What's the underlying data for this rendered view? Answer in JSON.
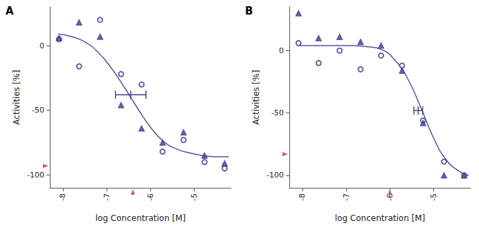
{
  "chart_data": [
    {
      "type": "scatter",
      "panel_label": "A",
      "x_label": "log Concentration [M]",
      "y_label": "Activities [%]",
      "xlim": [
        -8.3,
        -4.15
      ],
      "ylim": [
        -110,
        30
      ],
      "xticks": [
        -8,
        -7,
        -6,
        -5
      ],
      "yticks": [
        -100,
        -50,
        0
      ],
      "series": [
        {
          "type": "scatter",
          "marker": "circle_open",
          "color": "#3b3f8c",
          "x": [
            -8.09,
            -7.63,
            -7.15,
            -6.67,
            -6.2,
            -5.72,
            -5.24,
            -4.76,
            -4.3
          ],
          "values": [
            5,
            -16,
            20,
            -22,
            -30,
            -82,
            -73,
            -90,
            -95
          ]
        },
        {
          "type": "scatter",
          "marker": "triangle",
          "color": "#3b3f8c",
          "x": [
            -8.09,
            -7.63,
            -7.15,
            -6.67,
            -6.2,
            -5.72,
            -5.24,
            -4.76,
            -4.3
          ],
          "values": [
            6,
            18,
            7,
            -46,
            -64,
            -75,
            -67,
            -85,
            -91
          ]
        },
        {
          "type": "line",
          "line_style": "solid",
          "color": "#5055a0",
          "x": [
            -8.1,
            -7.8,
            -7.5,
            -7.2,
            -6.9,
            -6.6,
            -6.3,
            -6.0,
            -5.7,
            -5.4,
            -5.1,
            -4.8,
            -4.5,
            -4.2
          ],
          "values": [
            9,
            7,
            3,
            -5,
            -17,
            -32,
            -48,
            -63,
            -74,
            -80,
            -83,
            -85,
            -86,
            -86
          ]
        }
      ],
      "ic50": {
        "value": -6.45,
        "low": -6.8,
        "high": -6.1,
        "y": -38,
        "color": "#3b3f8c"
      },
      "axis_markers": {
        "x": -6.4,
        "y": -93,
        "color": "#c0392b"
      }
    },
    {
      "type": "scatter",
      "panel_label": "B",
      "x_label": "log Concentration [M]",
      "y_label": "Activities [%]",
      "xlim": [
        -8.3,
        -4.15
      ],
      "ylim": [
        -110,
        35
      ],
      "xticks": [
        -8,
        -7,
        -6,
        -5
      ],
      "yticks": [
        -100,
        -50,
        0
      ],
      "series": [
        {
          "type": "scatter",
          "marker": "circle_open",
          "color": "#3b3f8c",
          "x": [
            -8.09,
            -7.63,
            -7.15,
            -6.67,
            -6.2,
            -5.72,
            -5.24,
            -4.76,
            -4.3
          ],
          "values": [
            6,
            -10,
            0,
            -15,
            -4,
            -12,
            -56,
            -89,
            -100
          ]
        },
        {
          "type": "scatter",
          "marker": "triangle",
          "color": "#3b3f8c",
          "x": [
            -8.09,
            -7.63,
            -7.15,
            -6.67,
            -6.2,
            -5.72,
            -5.24,
            -4.76,
            -4.3
          ],
          "values": [
            30,
            10,
            11,
            7,
            4,
            -16,
            -58,
            -100,
            -100
          ]
        },
        {
          "type": "line",
          "line_style": "solid",
          "color": "#5055a0",
          "x": [
            -8.1,
            -7.5,
            -7.0,
            -6.5,
            -6.2,
            -5.9,
            -5.6,
            -5.3,
            -5.0,
            -4.7,
            -4.4,
            -4.2
          ],
          "values": [
            4,
            4,
            4,
            3,
            1,
            -7,
            -22,
            -45,
            -70,
            -88,
            -97,
            -100
          ]
        }
      ],
      "ic50": {
        "value": -5.35,
        "low": -5.45,
        "high": -5.25,
        "y": -48,
        "color": "#3b3f8c"
      },
      "axis_markers": {
        "x": -6.0,
        "y": -83,
        "color": "#c0392b"
      }
    }
  ]
}
